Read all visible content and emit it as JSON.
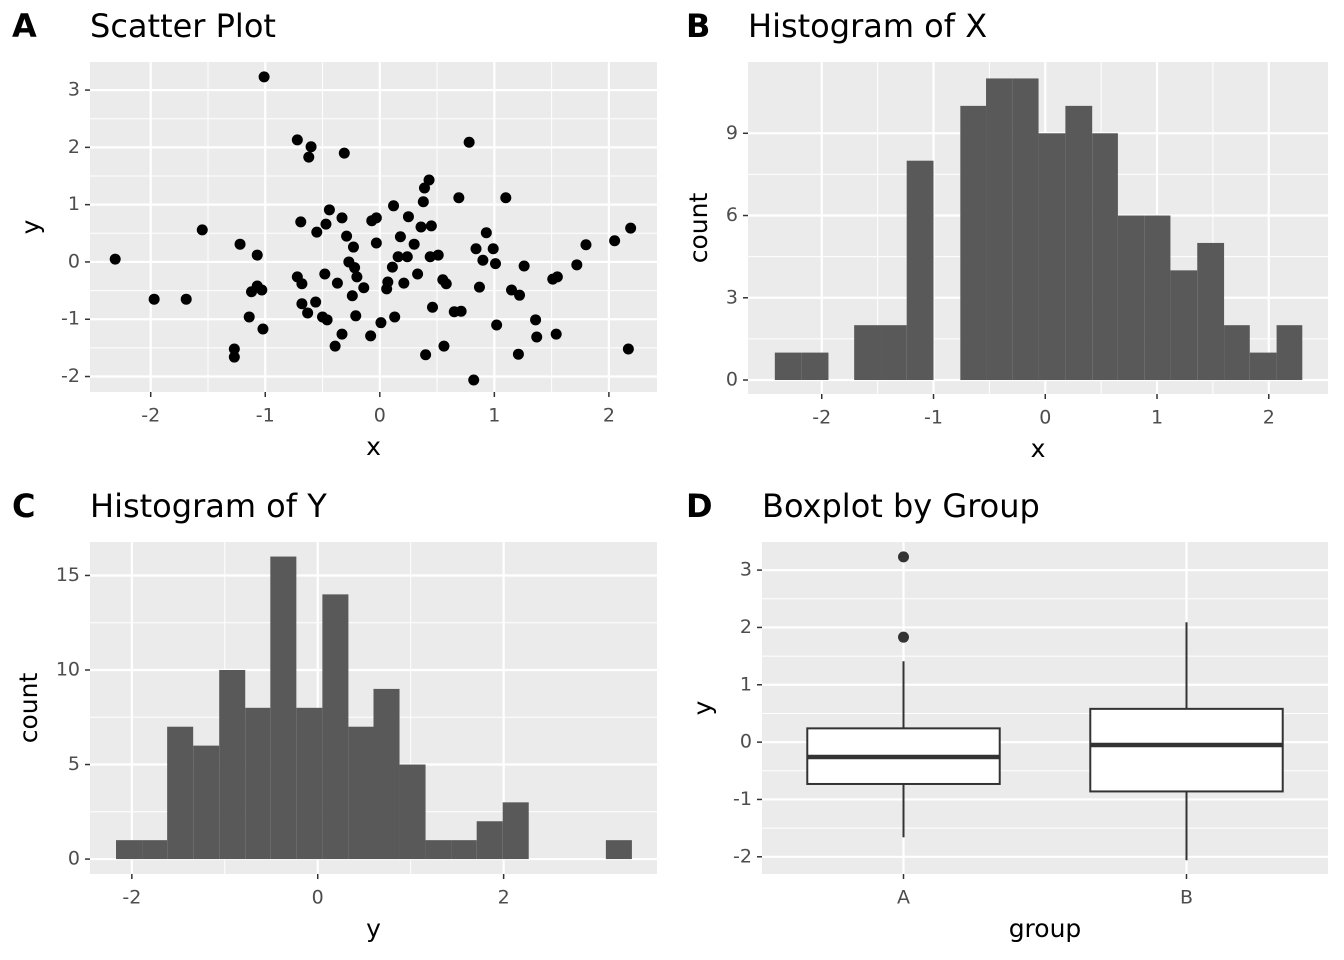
{
  "chart_data": [
    {
      "tag": "A",
      "type": "scatter",
      "title": "Scatter Plot",
      "x_label": "x",
      "y_label": "y",
      "color": "#000000",
      "grid": true,
      "xlim": [
        -2.53,
        2.42
      ],
      "ylim": [
        -2.27,
        3.49
      ],
      "xticks": [
        -2,
        -1,
        0,
        1,
        2
      ],
      "yticks": [
        -2,
        -1,
        0,
        1,
        2,
        3
      ],
      "x": [
        -2.31,
        -1.97,
        -1.69,
        -1.55,
        -1.22,
        -1.27,
        -1.27,
        -1.14,
        -1.12,
        -1.07,
        -1.07,
        -1.03,
        -1.02,
        -1.01,
        -0.72,
        -0.6,
        -0.62,
        -0.69,
        -0.72,
        -0.68,
        -0.68,
        -0.63,
        -0.56,
        -0.55,
        -0.5,
        -0.48,
        -0.46,
        -0.47,
        -0.44,
        -0.39,
        -0.37,
        -0.33,
        -0.33,
        -0.31,
        -0.29,
        -0.27,
        -0.23,
        -0.24,
        -0.22,
        -0.2,
        -0.21,
        -0.14,
        -0.08,
        -0.07,
        -0.03,
        -0.03,
        0.01,
        0.06,
        0.07,
        0.11,
        0.12,
        0.13,
        0.16,
        0.18,
        0.21,
        0.24,
        0.25,
        0.3,
        0.33,
        0.36,
        0.38,
        0.39,
        0.43,
        0.45,
        0.44,
        0.4,
        0.46,
        0.51,
        0.55,
        0.58,
        0.56,
        0.65,
        0.71,
        0.69,
        0.78,
        0.82,
        0.84,
        0.87,
        0.9,
        0.93,
        0.99,
        1.01,
        1.02,
        1.1,
        1.15,
        1.21,
        1.22,
        1.26,
        1.36,
        1.37,
        1.51,
        1.55,
        1.54,
        1.72,
        1.8,
        2.05,
        2.17,
        2.19
      ],
      "values": [
        0.05,
        -0.65,
        -0.65,
        0.56,
        0.31,
        -1.52,
        -1.66,
        -0.96,
        -0.52,
        0.12,
        -0.42,
        -0.49,
        -1.17,
        3.23,
        2.13,
        2.01,
        1.83,
        0.7,
        -0.26,
        -0.38,
        -0.73,
        -0.89,
        -0.7,
        0.52,
        -0.96,
        -0.21,
        -1.01,
        0.66,
        0.91,
        -1.47,
        -0.37,
        0.77,
        -1.26,
        1.9,
        0.45,
        0.0,
        0.26,
        -0.59,
        -0.1,
        -0.26,
        -0.94,
        -0.45,
        -1.29,
        0.72,
        0.77,
        0.33,
        -1.06,
        -0.47,
        -0.35,
        -0.09,
        0.98,
        -0.96,
        0.09,
        0.44,
        -0.37,
        0.09,
        0.79,
        0.31,
        -0.21,
        0.61,
        1.05,
        1.29,
        1.43,
        0.63,
        0.09,
        -1.62,
        -0.79,
        0.12,
        -0.31,
        -0.38,
        -1.47,
        -0.87,
        -0.86,
        1.12,
        2.09,
        -2.06,
        0.23,
        -0.44,
        0.03,
        0.51,
        0.23,
        -0.03,
        -1.1,
        1.12,
        -0.49,
        -1.61,
        -0.58,
        -0.07,
        -1.01,
        -1.31,
        -0.3,
        -0.26,
        -1.26,
        -0.05,
        0.3,
        0.37,
        -1.52,
        0.59
      ]
    },
    {
      "tag": "B",
      "type": "histogram",
      "title": "Histogram of X",
      "x_label": "x",
      "y_label": "count",
      "color": "#595959",
      "grid": true,
      "xlim": [
        -2.66,
        2.53
      ],
      "ylim": [
        -0.51,
        11.6
      ],
      "xticks": [
        -2,
        -1,
        0,
        1,
        2
      ],
      "yticks": [
        0,
        3,
        6,
        9
      ],
      "bins": [
        -2.42,
        -2.18,
        -1.94,
        -1.71,
        -1.47,
        -1.24,
        -1.0,
        -0.76,
        -0.53,
        -0.29,
        -0.06,
        0.18,
        0.42,
        0.65,
        0.89,
        1.12,
        1.36,
        1.6,
        1.83,
        2.07,
        2.3
      ],
      "values": [
        1,
        1,
        0,
        2,
        2,
        8,
        0,
        10,
        11,
        11,
        9,
        10,
        9,
        6,
        6,
        4,
        5,
        2,
        1,
        2
      ]
    },
    {
      "tag": "C",
      "type": "histogram",
      "title": "Histogram of Y",
      "x_label": "y",
      "y_label": "count",
      "color": "#595959",
      "grid": true,
      "xlim": [
        -2.45,
        3.65
      ],
      "ylim": [
        -0.79,
        16.77
      ],
      "xticks": [
        -2,
        0,
        2
      ],
      "yticks": [
        0,
        5,
        10,
        15
      ],
      "bins": [
        -2.17,
        -1.89,
        -1.62,
        -1.34,
        -1.06,
        -0.78,
        -0.51,
        -0.23,
        0.05,
        0.33,
        0.6,
        0.88,
        1.16,
        1.44,
        1.71,
        1.99,
        2.27,
        2.55,
        2.82,
        3.1,
        3.38
      ],
      "values": [
        1,
        1,
        7,
        6,
        10,
        8,
        16,
        8,
        14,
        7,
        9,
        5,
        1,
        1,
        2,
        3,
        0,
        0,
        0,
        1
      ]
    },
    {
      "tag": "D",
      "type": "boxplot",
      "title": "Boxplot by Group",
      "x_label": "group",
      "y_label": "y",
      "color": "#333333",
      "fill": "#ffffff",
      "grid": true,
      "ylim": [
        -2.3,
        3.49
      ],
      "yticks": [
        -2,
        -1,
        0,
        1,
        2,
        3
      ],
      "categories": [
        "A",
        "B"
      ],
      "boxes": [
        {
          "min": -1.66,
          "q1": -0.73,
          "median": -0.26,
          "q3": 0.24,
          "max": 1.41,
          "outliers": [
            1.83,
            3.23
          ]
        },
        {
          "min": -2.06,
          "q1": -0.86,
          "median": -0.05,
          "q3": 0.58,
          "max": 2.09,
          "outliers": []
        }
      ]
    }
  ]
}
